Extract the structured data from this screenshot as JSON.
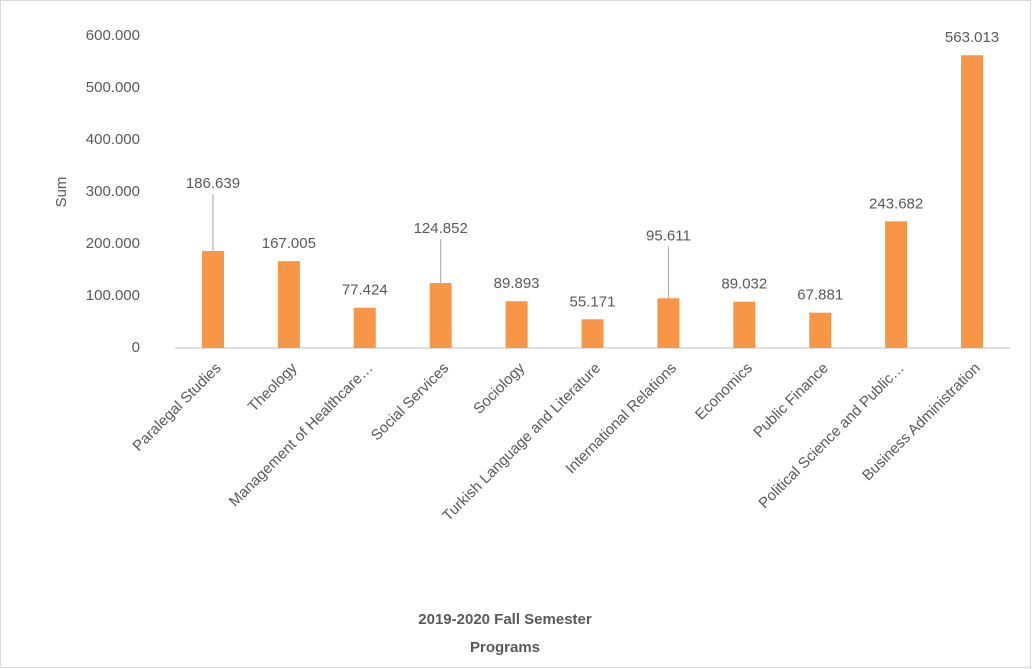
{
  "chart_data": {
    "type": "bar",
    "ylabel": "Sum",
    "xlabel": [
      "2019-2020 Fall Semester",
      "Programs"
    ],
    "categories": [
      "Paralegal Studies",
      "Theology",
      "Management of Healthcare…",
      "Social Services",
      "Sociology",
      "Turkish Language and Literature",
      "International Relations",
      "Economics",
      "Public Finance",
      "Political Science and Public…",
      "Business Administration"
    ],
    "values": [
      186639,
      167005,
      77424,
      124852,
      89893,
      55171,
      95611,
      89032,
      67881,
      243682,
      563013
    ],
    "value_labels": [
      "186.639",
      "167.005",
      "77.424",
      "124.852",
      "89.893",
      "55.171",
      "95.611",
      "89.032",
      "67.881",
      "243.682",
      "563.013"
    ],
    "color": "#f79646",
    "ylim": [
      0,
      600000
    ],
    "yticks": [
      0,
      {
        "value": 100000,
        "label": "100.000"
      },
      {
        "value": 200000,
        "label": "200.000"
      },
      {
        "value": 300000,
        "label": "300.000"
      },
      {
        "value": 400000,
        "label": "400.000"
      },
      {
        "value": 500000,
        "label": "500.000"
      },
      {
        "value": 600000,
        "label": "600.000"
      }
    ],
    "grid": false
  }
}
